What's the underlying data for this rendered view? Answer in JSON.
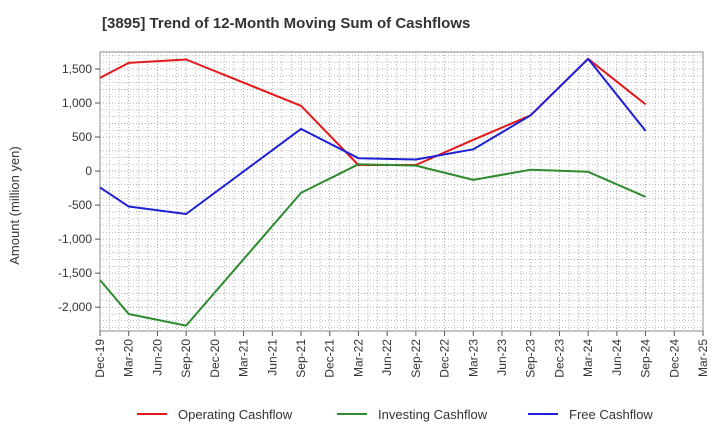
{
  "chart_data": {
    "type": "line",
    "title": "[3895]  Trend of 12-Month Moving Sum of Cashflows",
    "xlabel": "",
    "ylabel": "Amount (million yen)",
    "categories": [
      "Dec-19",
      "Mar-20",
      "Jun-20",
      "Sep-20",
      "Dec-20",
      "Mar-21",
      "Jun-21",
      "Sep-21",
      "Dec-21",
      "Mar-22",
      "Jun-22",
      "Sep-22",
      "Dec-22",
      "Mar-23",
      "Jun-23",
      "Sep-23",
      "Dec-23",
      "Mar-24",
      "Jun-24",
      "Sep-24",
      "Dec-24",
      "Mar-25"
    ],
    "ylim": [
      -2350,
      1750
    ],
    "yticks": [
      -2000,
      -1500,
      -1000,
      -500,
      0,
      500,
      1000,
      1500
    ],
    "ytick_labels": [
      "-2,000",
      "-1,500",
      "-1,000",
      "-500",
      "0",
      "500",
      "1,000",
      "1,500"
    ],
    "grid": true,
    "legend_position": "bottom",
    "series": [
      {
        "name": "Operating Cashflow",
        "color": "#e31a1c",
        "points": [
          [
            "Dec-19",
            1370
          ],
          [
            "Mar-20",
            1590
          ],
          [
            "Sep-20",
            1640
          ],
          [
            "Sep-21",
            960
          ],
          [
            "Mar-22",
            90
          ],
          [
            "Sep-22",
            90
          ],
          [
            "Mar-23",
            460
          ],
          [
            "Sep-23",
            820
          ],
          [
            "Mar-24",
            1650
          ],
          [
            "Sep-24",
            980
          ]
        ]
      },
      {
        "name": "Investing Cashflow",
        "color": "#2e8b2e",
        "points": [
          [
            "Dec-19",
            -1600
          ],
          [
            "Mar-20",
            -2100
          ],
          [
            "Sep-20",
            -2270
          ],
          [
            "Sep-21",
            -320
          ],
          [
            "Mar-22",
            100
          ],
          [
            "Sep-22",
            80
          ],
          [
            "Mar-23",
            -130
          ],
          [
            "Sep-23",
            20
          ],
          [
            "Mar-24",
            -10
          ],
          [
            "Sep-24",
            -380
          ]
        ]
      },
      {
        "name": "Free Cashflow",
        "color": "#1f1fd6",
        "points": [
          [
            "Dec-19",
            -240
          ],
          [
            "Mar-20",
            -520
          ],
          [
            "Sep-20",
            -630
          ],
          [
            "Sep-21",
            620
          ],
          [
            "Mar-22",
            190
          ],
          [
            "Sep-22",
            170
          ],
          [
            "Mar-23",
            320
          ],
          [
            "Sep-23",
            820
          ],
          [
            "Mar-24",
            1650
          ],
          [
            "Sep-24",
            590
          ]
        ]
      }
    ]
  }
}
